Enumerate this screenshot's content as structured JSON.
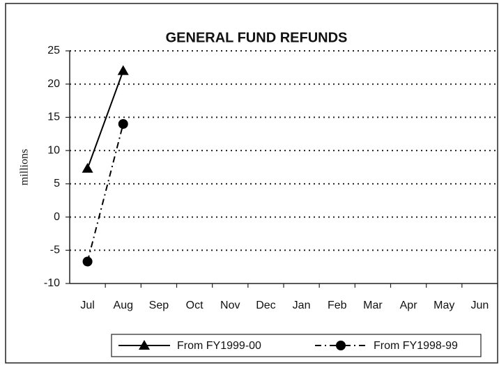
{
  "chart_data": {
    "type": "line",
    "title": "GENERAL FUND REFUNDS",
    "y_label": "millions",
    "categories": [
      "Jul",
      "Aug",
      "Sep",
      "Oct",
      "Nov",
      "Dec",
      "Jan",
      "Feb",
      "Mar",
      "Apr",
      "May",
      "Jun"
    ],
    "series": [
      {
        "name": "From FY1999-00",
        "color": "#000000",
        "marker": "triangle",
        "dash": "solid",
        "values": [
          7.3,
          22,
          null,
          null,
          null,
          null,
          null,
          null,
          null,
          null,
          null,
          null
        ]
      },
      {
        "name": "From FY1998-99",
        "color": "#000000",
        "marker": "circle",
        "dash": "dashdot",
        "values": [
          -6.7,
          14,
          null,
          null,
          null,
          null,
          null,
          null,
          null,
          null,
          null,
          null
        ]
      }
    ],
    "ylim": [
      -10,
      25
    ],
    "yticks": [
      -10,
      -5,
      0,
      5,
      10,
      15,
      20,
      25
    ],
    "grid": true,
    "legend": "bottom"
  }
}
